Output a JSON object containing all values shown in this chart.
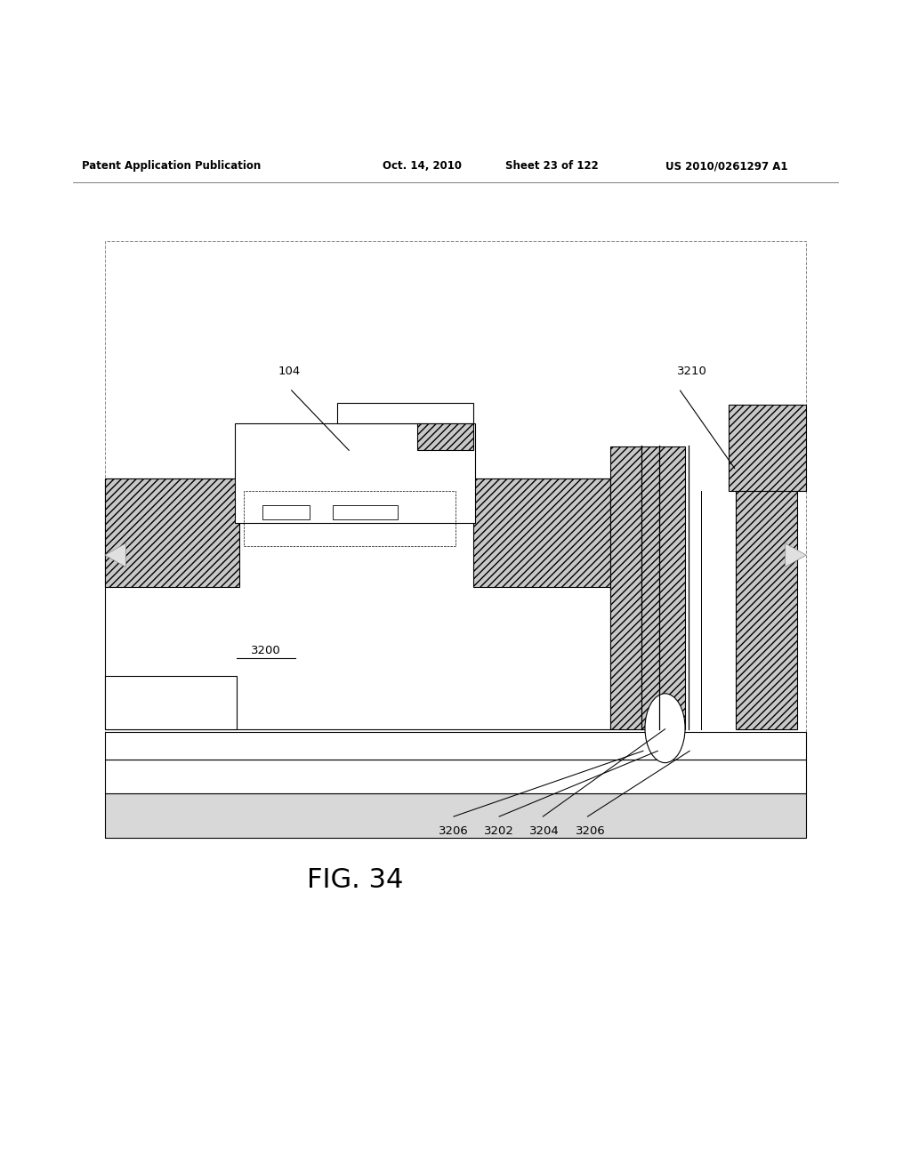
{
  "title_header": "Patent Application Publication",
  "date_header": "Oct. 14, 2010",
  "sheet_header": "Sheet 23 of 122",
  "patent_header": "US 2010/0261297 A1",
  "fig_label": "FIG. 34",
  "label_104": "104",
  "label_3210": "3210",
  "label_3200": "3200",
  "label_3202": "3202",
  "label_3204": "3204",
  "label_3206a": "3206",
  "label_3206b": "3206",
  "bg_color": "#ffffff",
  "line_color": "#000000",
  "gray": "#c8c8c8",
  "light_gray": "#d8d8d8"
}
